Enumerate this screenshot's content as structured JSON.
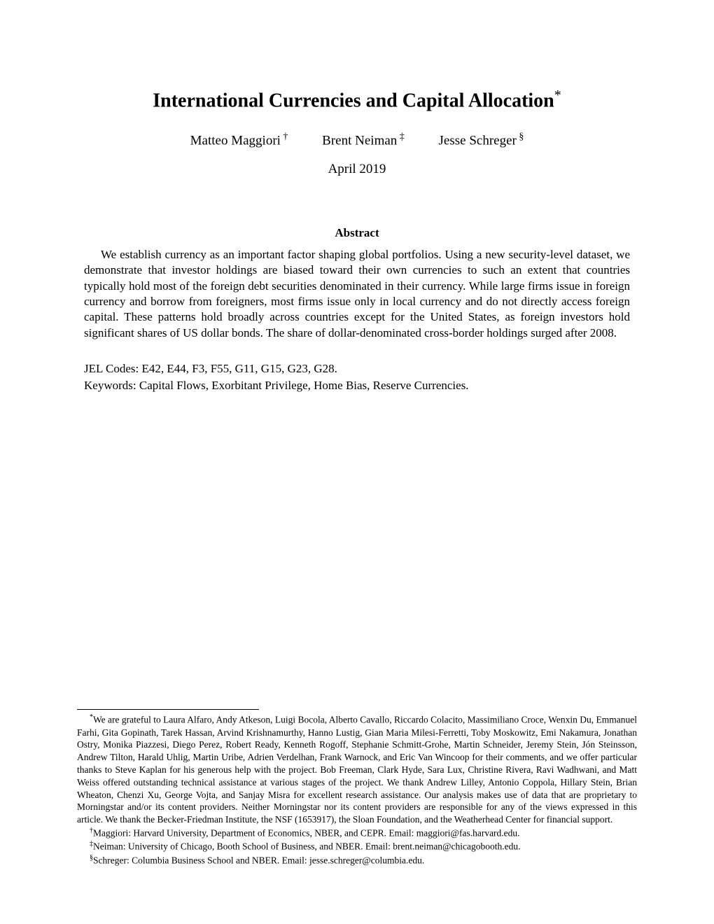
{
  "title": {
    "text": "International Currencies and Capital Allocation",
    "footnote_marker": "*"
  },
  "authors": [
    {
      "name": "Matteo Maggiori",
      "marker": "†"
    },
    {
      "name": "Brent Neiman",
      "marker": "‡"
    },
    {
      "name": "Jesse Schreger",
      "marker": "§"
    }
  ],
  "date": "April 2019",
  "abstract_heading": "Abstract",
  "abstract_body": "We establish currency as an important factor shaping global portfolios. Using a new security-level dataset, we demonstrate that investor holdings are biased toward their own currencies to such an extent that countries typically hold most of the foreign debt securities denominated in their currency. While large firms issue in foreign currency and borrow from foreigners, most firms issue only in local currency and do not directly access foreign capital. These patterns hold broadly across countries except for the United States, as foreign investors hold significant shares of US dollar bonds. The share of dollar-denominated cross-border holdings surged after 2008.",
  "jel": "JEL Codes: E42, E44, F3, F55, G11, G15, G23, G28.",
  "keywords": "Keywords: Capital Flows, Exorbitant Privilege, Home Bias, Reserve Currencies.",
  "footnotes": {
    "ack_marker": "*",
    "ack": "We are grateful to Laura Alfaro, Andy Atkeson, Luigi Bocola, Alberto Cavallo, Riccardo Colacito, Massimiliano Croce, Wenxin Du, Emmanuel Farhi, Gita Gopinath, Tarek Hassan, Arvind Krishnamurthy, Hanno Lustig, Gian Maria Milesi-Ferretti, Toby Moskowitz, Emi Nakamura, Jonathan Ostry, Monika Piazzesi, Diego Perez, Robert Ready, Kenneth Rogoff, Stephanie Schmitt-Grohe, Martin Schneider, Jeremy Stein, Jón Steinsson, Andrew Tilton, Harald Uhlig, Martin Uribe, Adrien Verdelhan, Frank Warnock, and Eric Van Wincoop for their comments, and we offer particular thanks to Steve Kaplan for his generous help with the project. Bob Freeman, Clark Hyde, Sara Lux, Christine Rivera, Ravi Wadhwani, and Matt Weiss offered outstanding technical assistance at various stages of the project. We thank Andrew Lilley, Antonio Coppola, Hillary Stein, Brian Wheaton, Chenzi Xu, George Vojta, and Sanjay Misra for excellent research assistance. Our analysis makes use of data that are proprietary to Morningstar and/or its content providers. Neither Morningstar nor its content providers are responsible for any of the views expressed in this article. We thank the Becker-Friedman Institute, the NSF (1653917), the Sloan Foundation, and the Weatherhead Center for financial support.",
    "aff1_marker": "†",
    "aff1": "Maggiori: Harvard University, Department of Economics, NBER, and CEPR. Email: maggiori@fas.harvard.edu.",
    "aff2_marker": "‡",
    "aff2": "Neiman: University of Chicago, Booth School of Business, and NBER. Email: brent.neiman@chicagobooth.edu.",
    "aff3_marker": "§",
    "aff3": "Schreger: Columbia Business School and NBER. Email: jesse.schreger@columbia.edu."
  }
}
